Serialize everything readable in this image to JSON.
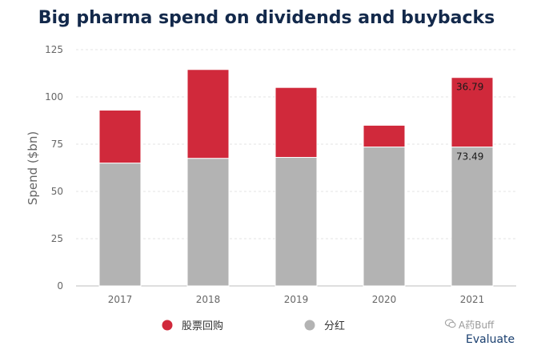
{
  "chart_data": {
    "type": "bar",
    "stacked": true,
    "title": "Big pharma spend on dividends and buybacks",
    "ylabel": "Spend ($bn)",
    "xlabel": "",
    "categories": [
      "2017",
      "2018",
      "2019",
      "2020",
      "2021"
    ],
    "yticks": [
      "0",
      "25",
      "50",
      "75",
      "100",
      "125"
    ],
    "ylim": [
      0,
      125
    ],
    "grid": true,
    "legend_position": "bottom",
    "series": [
      {
        "name": "分红",
        "color": "#b3b3b3",
        "values": [
          65,
          67.5,
          68,
          73.5,
          73.49
        ]
      },
      {
        "name": "股票回购",
        "color": "#d0293b",
        "values": [
          28,
          47,
          37,
          11.5,
          36.79
        ]
      }
    ],
    "annotations": [
      {
        "category": "2021",
        "series": "股票回购",
        "text": "36.79"
      },
      {
        "category": "2021",
        "series": "分红",
        "text": "73.49"
      }
    ]
  },
  "watermark": {
    "icon": "wechat-icon",
    "text": "A药Buff"
  },
  "brand": {
    "text": "Evaluate"
  }
}
